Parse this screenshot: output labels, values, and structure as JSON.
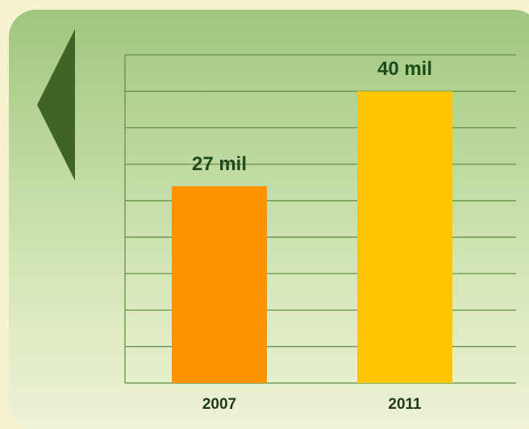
{
  "colors": {
    "page_background": "#f5f2cf",
    "panel_top": "#9fc77d",
    "panel_bottom": "#eef3d8",
    "arrow": "#3f6428",
    "gridline": "#5f8a40",
    "bar_2007": "#ff9400",
    "bar_2011": "#ffc600",
    "label_text": "#1f4a1a"
  },
  "navigation": {
    "back_icon": "triangle-left-arrow"
  },
  "chart_data": {
    "type": "bar",
    "categories": [
      "2007",
      "2011"
    ],
    "values": [
      27,
      40
    ],
    "value_labels": [
      "27 mil",
      "40 mil"
    ],
    "title": "",
    "xlabel": "",
    "ylabel": "",
    "ylim": [
      0,
      45
    ],
    "gridline_values": [
      0,
      5,
      10,
      15,
      20,
      25,
      30,
      35,
      40,
      45
    ],
    "grid": true,
    "legend": "none"
  }
}
